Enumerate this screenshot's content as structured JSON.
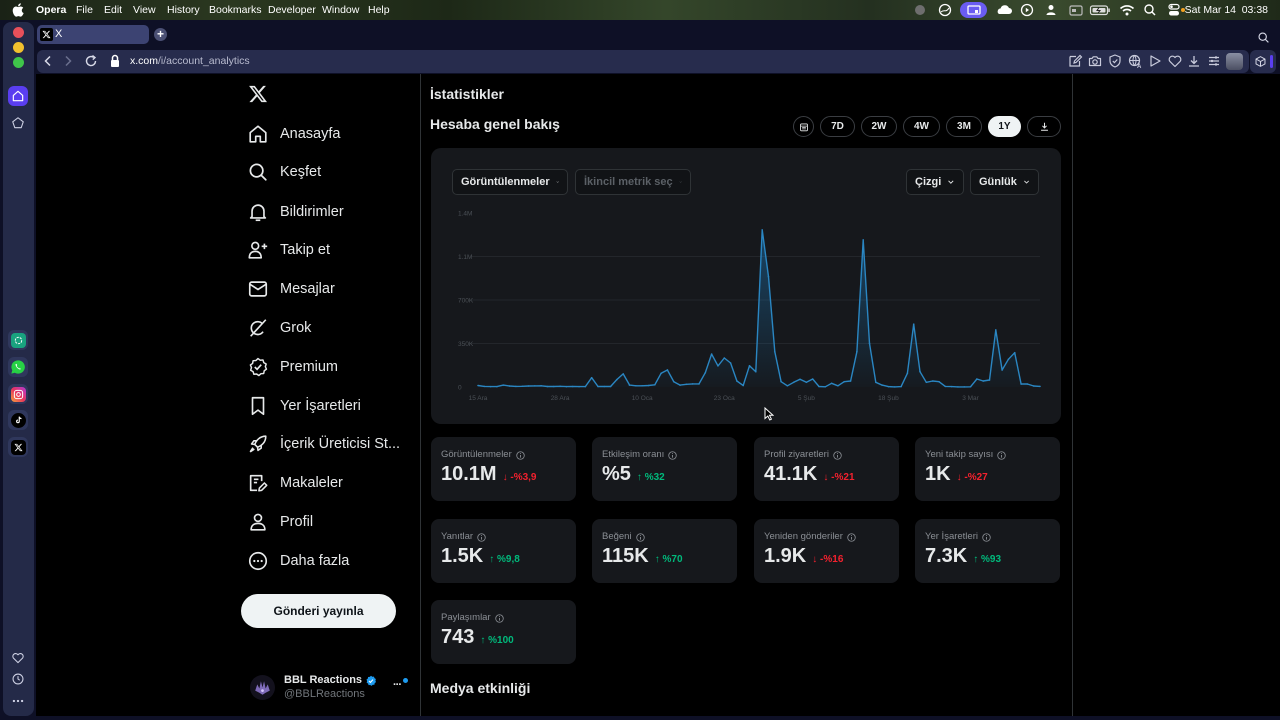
{
  "menubar": {
    "app_name": "Opera",
    "menus": [
      "File",
      "Edit",
      "View",
      "History",
      "Bookmarks",
      "Developer",
      "Window",
      "Help"
    ],
    "date": "Sat Mar 14",
    "time": "03:38"
  },
  "browser": {
    "tab_title": "X",
    "new_tab_label": "+",
    "url_domain": "x.com",
    "url_path": "/i/account_analytics"
  },
  "nav": {
    "items": [
      {
        "label": "Anasayfa",
        "icon": "home-icon"
      },
      {
        "label": "Keşfet",
        "icon": "search-icon"
      },
      {
        "label": "Bildirimler",
        "icon": "bell-icon"
      },
      {
        "label": "Takip et",
        "icon": "person-plus-icon"
      },
      {
        "label": "Mesajlar",
        "icon": "envelope-icon"
      },
      {
        "label": "Grok",
        "icon": "grok-icon"
      },
      {
        "label": "Premium",
        "icon": "premium-badge-icon"
      },
      {
        "label": "Yer İşaretleri",
        "icon": "bookmark-icon"
      },
      {
        "label": "İçerik Üreticisi St...",
        "icon": "rocket-icon"
      },
      {
        "label": "Makaleler",
        "icon": "article-icon"
      },
      {
        "label": "Profil",
        "icon": "profile-icon"
      },
      {
        "label": "Daha fazla",
        "icon": "more-circle-icon"
      }
    ],
    "post_button": "Gönderi yayınla",
    "account": {
      "name": "BBL Reactions",
      "handle": "@BBLReactions",
      "verified": true,
      "more_label": "···"
    }
  },
  "main": {
    "page_title": "İstatistikler",
    "section_title": "Hesaba genel bakış",
    "ranges": [
      "7D",
      "2W",
      "4W",
      "3M",
      "1Y"
    ],
    "selected_range": "1Y",
    "chart_controls": {
      "primary_metric": "Görüntülenmeler",
      "secondary_metric_placeholder": "İkincil metrik seç",
      "chart_type": "Çizgi",
      "granularity": "Günlük"
    },
    "metrics": [
      {
        "label": "Görüntülenmeler",
        "value": "10.1M",
        "direction": "down",
        "arrow": "↓",
        "change": "-%3,9"
      },
      {
        "label": "Etkileşim oranı",
        "value": "%5",
        "direction": "up",
        "arrow": "↑",
        "change": "%32"
      },
      {
        "label": "Profil ziyaretleri",
        "value": "41.1K",
        "direction": "down",
        "arrow": "↓",
        "change": "-%21"
      },
      {
        "label": "Yeni takip sayısı",
        "value": "1K",
        "direction": "down",
        "arrow": "↓",
        "change": "-%27"
      },
      {
        "label": "Yanıtlar",
        "value": "1.5K",
        "direction": "up",
        "arrow": "↑",
        "change": "%9,8"
      },
      {
        "label": "Beğeni",
        "value": "115K",
        "direction": "up",
        "arrow": "↑",
        "change": "%70"
      },
      {
        "label": "Yeniden gönderiler",
        "value": "1.9K",
        "direction": "down",
        "arrow": "↓",
        "change": "-%16"
      },
      {
        "label": "Yer İşaretleri",
        "value": "7.3K",
        "direction": "up",
        "arrow": "↑",
        "change": "%93"
      },
      {
        "label": "Paylaşımlar",
        "value": "743",
        "direction": "up",
        "arrow": "↑",
        "change": "%100"
      }
    ],
    "media_title": "Medya etkinliği"
  },
  "colors": {
    "accent": "#1d9bf0",
    "positive": "#00ba7c",
    "negative": "#f4212e",
    "chart_line": "#2a86c2",
    "opera_accent": "#5a3ef0"
  },
  "chart_data": {
    "type": "line",
    "title": "",
    "xlabel": "",
    "ylabel": "",
    "series_name": "Görüntülenmeler",
    "granularity": "daily",
    "ylim": [
      0,
      1400000
    ],
    "grid": true,
    "y_ticks": [
      {
        "label": "0",
        "value": 0
      },
      {
        "label": "350K",
        "value": 350000
      },
      {
        "label": "700K",
        "value": 700000
      },
      {
        "label": "1.1M",
        "value": 1050000
      },
      {
        "label": "1.4M",
        "value": 1400000
      }
    ],
    "x_ticks": [
      {
        "label": "15 Ara",
        "index": 0
      },
      {
        "label": "28 Ara",
        "index": 13
      },
      {
        "label": "10 Oca",
        "index": 26
      },
      {
        "label": "23 Oca",
        "index": 39
      },
      {
        "label": "5 Şub",
        "index": 52
      },
      {
        "label": "18 Şub",
        "index": 65
      },
      {
        "label": "3 Mar",
        "index": 78
      }
    ],
    "values": [
      12000,
      5000,
      3000,
      3000,
      15000,
      8000,
      5000,
      6000,
      8000,
      9000,
      10000,
      4000,
      4000,
      6000,
      3000,
      4000,
      3000,
      3000,
      75000,
      4000,
      4000,
      4000,
      60000,
      105000,
      15000,
      10000,
      10000,
      12000,
      18000,
      110000,
      137000,
      43000,
      15000,
      22000,
      25000,
      25000,
      115000,
      265000,
      170000,
      233000,
      193000,
      48000,
      12000,
      171000,
      123000,
      1264000,
      888000,
      284000,
      43000,
      10000,
      38000,
      62000,
      38000,
      64000,
      4000,
      2000,
      30000,
      10000,
      43000,
      48000,
      284000,
      1183000,
      351000,
      38000,
      15000,
      3000,
      1000,
      3000,
      110000,
      505000,
      123000,
      38000,
      48000,
      43000,
      5000,
      3000,
      1000,
      1000,
      2000,
      64000,
      48000,
      56000,
      459000,
      137000,
      223000,
      276000,
      24000,
      24000,
      8000,
      5000
    ]
  }
}
